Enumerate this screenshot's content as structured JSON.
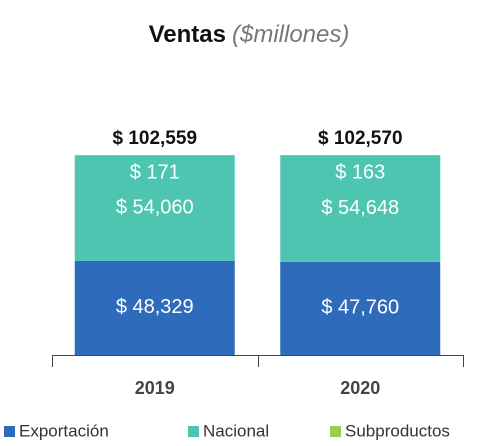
{
  "chart_data": {
    "type": "stacked_bar",
    "title": "Ventas",
    "subtitle": "($millones)",
    "categories": [
      "2019",
      "2020"
    ],
    "series": [
      {
        "name": "Exportación",
        "color": "#2f6bbb",
        "values": [
          48329,
          47760
        ],
        "value_labels": [
          "$ 48,329",
          "$ 47,760"
        ]
      },
      {
        "name": "Nacional",
        "color": "#4ec5b1",
        "values": [
          54060,
          54648
        ],
        "value_labels": [
          "$ 54,060",
          "$ 54,648"
        ]
      },
      {
        "name": "Subproductos",
        "color": "#92d050",
        "values": [
          171,
          163
        ],
        "value_labels": [
          "$ 171",
          "$ 163"
        ]
      }
    ],
    "totals": {
      "values": [
        102559,
        102570
      ],
      "value_labels": [
        "$ 102,559",
        "$ 102,570"
      ]
    },
    "legend": "bottom"
  }
}
